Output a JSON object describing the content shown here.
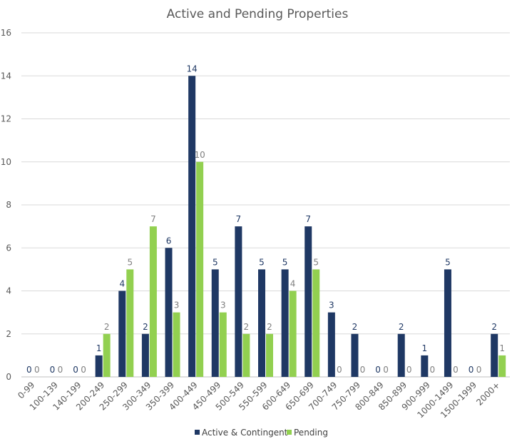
{
  "chart_data": {
    "type": "bar",
    "title": "Active and Pending Properties",
    "xlabel": "",
    "ylabel": "",
    "ylim": [
      0,
      16
    ],
    "yticks": [
      0,
      2,
      4,
      6,
      8,
      10,
      12,
      14,
      16
    ],
    "grid": true,
    "legend_position": "bottom",
    "categories": [
      "0-99",
      "100-139",
      "140-199",
      "200-249",
      "250-299",
      "300-349",
      "350-399",
      "400-449",
      "450-499",
      "500-549",
      "550-599",
      "600-649",
      "650-699",
      "700-749",
      "750-799",
      "800-849",
      "850-899",
      "900-999",
      "1000-1499",
      "1500-1999",
      "2000+"
    ],
    "series": [
      {
        "name": "Active & Contingent",
        "color": "#1f3864",
        "label_color": "#1f3864",
        "values": [
          0,
          0,
          0,
          1,
          4,
          2,
          6,
          14,
          5,
          7,
          5,
          5,
          7,
          3,
          2,
          0,
          2,
          1,
          5,
          0,
          2
        ]
      },
      {
        "name": "Pending",
        "color": "#92d050",
        "label_color": "#7f7f7f",
        "values": [
          0,
          0,
          0,
          2,
          5,
          7,
          3,
          10,
          3,
          2,
          2,
          4,
          5,
          0,
          0,
          0,
          0,
          0,
          0,
          0,
          1
        ]
      }
    ]
  }
}
